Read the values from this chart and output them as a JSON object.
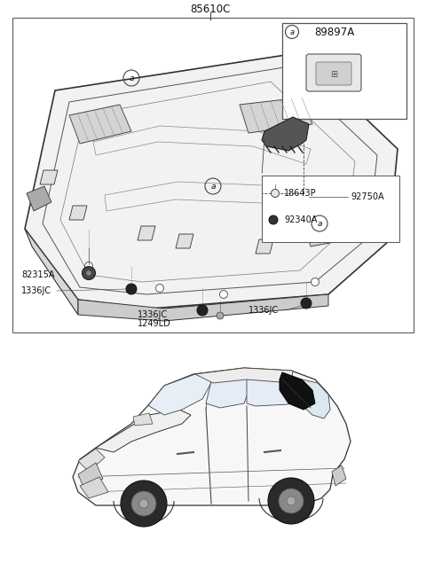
{
  "title": "85610C",
  "background_color": "#ffffff",
  "border_color": "#555555",
  "text_color": "#111111",
  "line_color": "#444444",
  "part_numbers": {
    "main_title": "85610C",
    "inset_label": "89897A",
    "p1": "18643P",
    "p2": "92750A",
    "p3": "92340A",
    "p4": "82315A",
    "p5": "1336JC",
    "p6": "1336JC",
    "p7": "1336JC",
    "p8": "1249LD",
    "p9": "1336JC"
  },
  "fig_width": 4.8,
  "fig_height": 6.35,
  "dpi": 100
}
